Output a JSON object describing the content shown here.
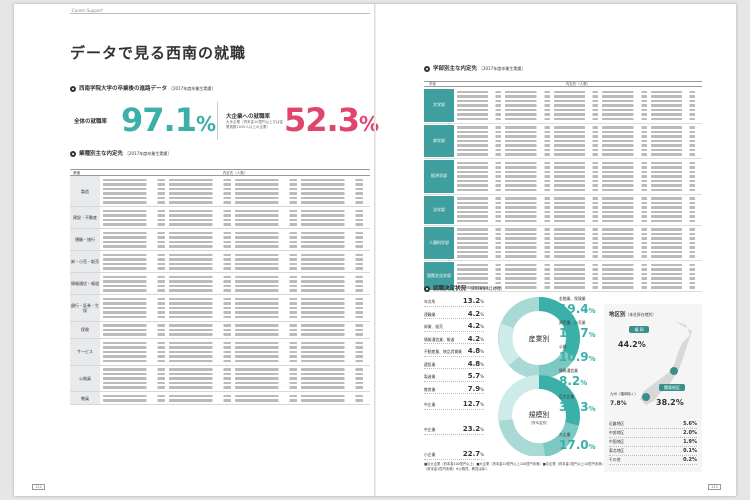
{
  "header": {
    "section_label": "Career Support"
  },
  "title": "データで見る西南の就職",
  "rates": {
    "section_title": "西南学院大学の卒業後の進路データ",
    "section_note": "［2017年度卒業生実績］",
    "employment_label": "全体の就職率",
    "employment_value": "97.1",
    "employment_unit": "%",
    "major_label": "大企業への就職率",
    "major_note": "大手企業（資本金10億円以上又は従業員数1000人以上の企業）",
    "major_value": "52.3",
    "major_unit": "%"
  },
  "industry": {
    "section_title": "業種別主な内定先",
    "section_note": "［2017年度卒業生実績］",
    "col_industry": "業種",
    "col_companies": "内定先（人数）",
    "rows": [
      {
        "name": "製造",
        "lines": 24
      },
      {
        "name": "建設・不動産",
        "lines": 16
      },
      {
        "name": "運輸・旅行",
        "lines": 16
      },
      {
        "name": "卸・小売・販売",
        "lines": 16
      },
      {
        "name": "情報通信・報道",
        "lines": 16
      },
      {
        "name": "銀行・証券・生保",
        "lines": 20
      },
      {
        "name": "保険",
        "lines": 12
      },
      {
        "name": "サービス",
        "lines": 20
      },
      {
        "name": "公務員",
        "lines": 20
      },
      {
        "name": "教員",
        "lines": 8
      }
    ]
  },
  "faculty": {
    "section_title": "学部別主な内定先",
    "section_note": "［2017年度卒業生実績］",
    "col_faculty": "学部",
    "col_companies": "内定先（人数）",
    "rows": [
      {
        "name": "文学部",
        "lines": 35
      },
      {
        "name": "商学部",
        "lines": 35
      },
      {
        "name": "経済学部",
        "lines": 35
      },
      {
        "name": "法学部",
        "lines": 30
      },
      {
        "name": "人間科学部",
        "lines": 35
      },
      {
        "name": "国際文化学部",
        "lines": 30
      }
    ]
  },
  "employment_status": {
    "section_title": "就職決定状況",
    "section_note": "（2018年4月時点）",
    "left": [
      {
        "label": "年次所",
        "value": "13.2"
      },
      {
        "label": "運輸業",
        "value": "4.2"
      },
      {
        "label": "卸業、販売",
        "value": "4.2"
      },
      {
        "label": "情報通信業、報道",
        "value": "4.2"
      },
      {
        "label": "不動産業、物品賃貸業",
        "value": "4.8"
      },
      {
        "label": "建設業",
        "value": "4.8"
      },
      {
        "label": "製造業",
        "value": "5.7"
      },
      {
        "label": "教育業",
        "value": "7.9"
      }
    ],
    "industry_center": "産業別",
    "industry_right": [
      {
        "label": "金融業、保険業",
        "value": "19.4"
      },
      {
        "label": "卸売業、小売業",
        "value": "16.7"
      },
      {
        "label": "公務",
        "value": "10.9"
      },
      {
        "label": "情報通信業",
        "value": "8.2"
      }
    ],
    "scale_center": "規模別",
    "scale_center_sub": "（資本金別）",
    "scale_left": [
      {
        "label": "中企業",
        "value": "12.7"
      },
      {
        "label": "中企業",
        "value": "23.2"
      },
      {
        "label": "小企業",
        "value": "22.7"
      }
    ],
    "scale_right": [
      {
        "label": "巨大企業",
        "value": "35.3"
      },
      {
        "label": "大企業",
        "value": "17.0"
      }
    ],
    "legend": "■巨大企業（資本金100億円以上）■大企業（資本金10億円以上100億円未満）■中企業（資本金1億円以上10億円未満）■小企業（資本金1億円未満）※公務員、教員は除く"
  },
  "region": {
    "title": "地区別",
    "title_note": "（本社所在地別）",
    "kyushu_label": "福 岡",
    "kyushu_value": "44.2",
    "kanto_label": "関東地区",
    "kanto_value": "38.2",
    "other_label": "九州（福岡除く）",
    "other_value": "7.8",
    "list": [
      {
        "name": "近畿地区",
        "value": "5.6%"
      },
      {
        "name": "中部地区",
        "value": "2.0%"
      },
      {
        "name": "中国地区",
        "value": "1.9%"
      },
      {
        "name": "東北地区",
        "value": "0.1%"
      },
      {
        "name": "その他",
        "value": "0.2%"
      }
    ]
  },
  "colors": {
    "teal": "#3ab0a8",
    "pink": "#e0456e",
    "faculty_bg": "#3f9f9f"
  },
  "pages": {
    "left": "124",
    "right": "125"
  }
}
